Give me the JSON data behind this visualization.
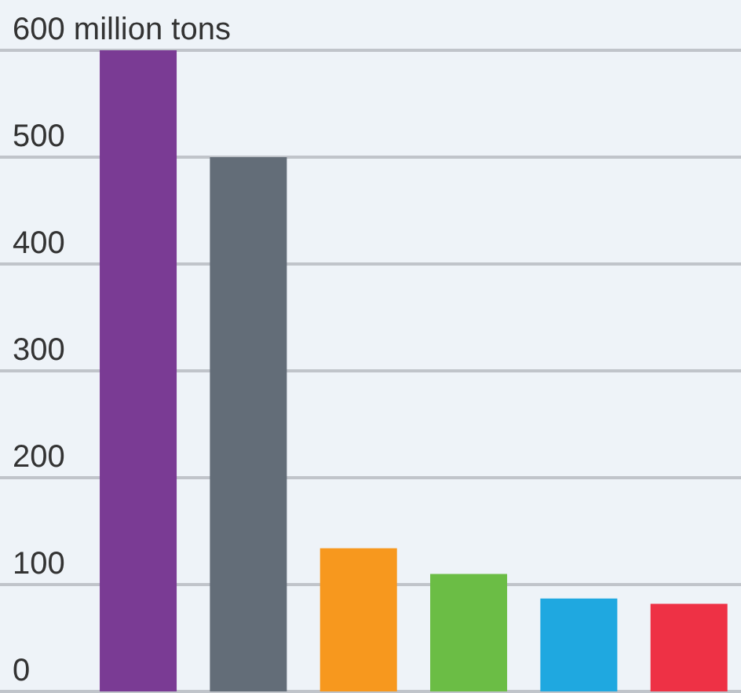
{
  "chart_data": {
    "type": "bar",
    "categories": [
      null,
      null,
      null,
      null,
      null,
      null
    ],
    "values": [
      600,
      500,
      134,
      110,
      87,
      82
    ],
    "colors": [
      "#7a3b94",
      "#636d78",
      "#f7981e",
      "#6bbd45",
      "#1fa8e0",
      "#ee3145"
    ],
    "ylim": [
      0,
      600
    ],
    "yticks": [
      0,
      100,
      200,
      300,
      400,
      500,
      {
        "value": 600,
        "label": "600 million tons"
      }
    ],
    "grid": "y"
  }
}
